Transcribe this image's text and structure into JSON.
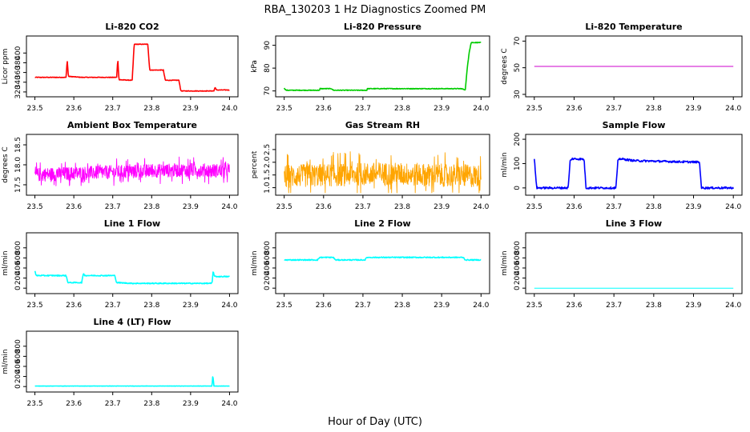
{
  "figure": {
    "title": "RBA_130203  1 Hz Diagnostics Zoomed PM",
    "xlabel": "Hour of Day (UTC)"
  },
  "chart_data": [
    {
      "id": "co2",
      "type": "line",
      "title": "Li-820 CO2",
      "ylabel": "Licor ppm",
      "color": "#ff0000",
      "xlim": [
        23.5,
        24.0
      ],
      "ylim": [
        315,
        430
      ],
      "xticks": [
        "23.5",
        "23.6",
        "23.7",
        "23.8",
        "23.9",
        "24.0"
      ],
      "yticks": [
        "320",
        "340",
        "360",
        "380",
        "400"
      ],
      "noise": 0.6,
      "points": [
        [
          23.5,
          350
        ],
        [
          23.58,
          350
        ],
        [
          23.583,
          386
        ],
        [
          23.586,
          352
        ],
        [
          23.62,
          350
        ],
        [
          23.71,
          350
        ],
        [
          23.713,
          387
        ],
        [
          23.716,
          345
        ],
        [
          23.75,
          344
        ],
        [
          23.755,
          418
        ],
        [
          23.79,
          418
        ],
        [
          23.795,
          365
        ],
        [
          23.83,
          365
        ],
        [
          23.835,
          344
        ],
        [
          23.87,
          344
        ],
        [
          23.875,
          322
        ],
        [
          23.96,
          322
        ],
        [
          23.963,
          330
        ],
        [
          23.966,
          324
        ],
        [
          24.0,
          324
        ]
      ]
    },
    {
      "id": "pressure",
      "type": "line",
      "title": "Li-820 Pressure",
      "ylabel": "kPa",
      "color": "#00cc00",
      "xlim": [
        23.5,
        24.0
      ],
      "ylim": [
        68.5,
        93
      ],
      "xticks": [
        "23.5",
        "23.6",
        "23.7",
        "23.8",
        "23.9",
        "24.0"
      ],
      "yticks": [
        "70",
        "80",
        "90"
      ],
      "noise": 0.15,
      "points": [
        [
          23.5,
          71.2
        ],
        [
          23.505,
          70.3
        ],
        [
          23.59,
          70.3
        ],
        [
          23.59,
          71
        ],
        [
          23.62,
          71
        ],
        [
          23.625,
          70.3
        ],
        [
          23.71,
          70.3
        ],
        [
          23.71,
          71
        ],
        [
          23.95,
          71
        ],
        [
          23.96,
          70.5
        ],
        [
          23.965,
          80
        ],
        [
          23.97,
          87
        ],
        [
          23.975,
          91.2
        ],
        [
          24.0,
          91.2
        ]
      ]
    },
    {
      "id": "temp",
      "type": "line",
      "title": "Li-820 Temperature",
      "ylabel": "degrees C",
      "color": "#cc00cc",
      "xlim": [
        23.5,
        24.0
      ],
      "ylim": [
        30,
        72
      ],
      "xticks": [
        "23.5",
        "23.6",
        "23.7",
        "23.8",
        "23.9",
        "24.0"
      ],
      "yticks": [
        "30",
        "50",
        "70"
      ],
      "noise": 0,
      "points": [
        [
          23.5,
          51
        ],
        [
          24.0,
          51
        ]
      ]
    },
    {
      "id": "boxtemp",
      "type": "line",
      "title": "Ambient Box Temperature",
      "ylabel": "degrees C",
      "color": "#ff00ff",
      "xlim": [
        23.5,
        24.0
      ],
      "ylim": [
        17.3,
        18.7
      ],
      "xticks": [
        "23.5",
        "23.6",
        "23.7",
        "23.8",
        "23.9",
        "24.0"
      ],
      "yticks": [
        "17.5",
        "18.0",
        "18.5"
      ],
      "noise": 0.17,
      "dense": true,
      "points": [
        [
          23.5,
          17.75
        ],
        [
          23.65,
          17.8
        ],
        [
          23.8,
          17.85
        ],
        [
          23.9,
          17.87
        ],
        [
          24.0,
          17.85
        ]
      ]
    },
    {
      "id": "rh",
      "type": "line",
      "title": "Gas Stream RH",
      "ylabel": "percent",
      "color": "#ffa500",
      "xlim": [
        23.5,
        24.0
      ],
      "ylim": [
        0.8,
        3.0
      ],
      "xticks": [
        "23.5",
        "23.6",
        "23.7",
        "23.8",
        "23.9",
        "24.0"
      ],
      "yticks": [
        "1.0",
        "1.5",
        "2.0",
        "2.5"
      ],
      "noise": 0.45,
      "dense": true,
      "points": [
        [
          23.5,
          1.45
        ],
        [
          23.75,
          1.55
        ],
        [
          24.0,
          1.45
        ]
      ]
    },
    {
      "id": "sample",
      "type": "line",
      "title": "Sample Flow",
      "ylabel": "ml/min",
      "color": "#0000ff",
      "xlim": [
        23.5,
        24.0
      ],
      "ylim": [
        -20,
        210
      ],
      "xticks": [
        "23.5",
        "23.6",
        "23.7",
        "23.8",
        "23.9",
        "24.0"
      ],
      "yticks": [
        "0",
        "100",
        "200"
      ],
      "noise": 4,
      "points": [
        [
          23.5,
          120
        ],
        [
          23.503,
          60
        ],
        [
          23.506,
          0
        ],
        [
          23.585,
          0
        ],
        [
          23.59,
          110
        ],
        [
          23.595,
          120
        ],
        [
          23.625,
          118
        ],
        [
          23.63,
          0
        ],
        [
          23.705,
          0
        ],
        [
          23.71,
          110
        ],
        [
          23.715,
          120
        ],
        [
          23.75,
          112
        ],
        [
          23.85,
          108
        ],
        [
          23.915,
          106
        ],
        [
          23.92,
          0
        ],
        [
          24.0,
          0
        ]
      ]
    },
    {
      "id": "line1",
      "type": "line",
      "title": "Line 1 Flow",
      "ylabel": "ml/min",
      "color": "#00ffff",
      "xlim": [
        23.5,
        24.0
      ],
      "ylim": [
        -60,
        1050
      ],
      "xticks": [
        "23.5",
        "23.6",
        "23.7",
        "23.8",
        "23.9",
        "24.0"
      ],
      "yticks": [
        "0",
        "200",
        "400",
        "600",
        "800"
      ],
      "noise": 10,
      "points": [
        [
          23.5,
          340
        ],
        [
          23.503,
          250
        ],
        [
          23.58,
          250
        ],
        [
          23.585,
          110
        ],
        [
          23.62,
          110
        ],
        [
          23.625,
          300
        ],
        [
          23.628,
          250
        ],
        [
          23.705,
          250
        ],
        [
          23.71,
          110
        ],
        [
          23.75,
          95
        ],
        [
          23.955,
          95
        ],
        [
          23.958,
          330
        ],
        [
          23.962,
          230
        ],
        [
          24.0,
          230
        ]
      ]
    },
    {
      "id": "line2",
      "type": "line",
      "title": "Line 2 Flow",
      "ylabel": "ml/min",
      "color": "#00ffff",
      "xlim": [
        23.5,
        24.0
      ],
      "ylim": [
        -60,
        1050
      ],
      "xticks": [
        "23.5",
        "23.6",
        "23.7",
        "23.8",
        "23.9",
        "24.0"
      ],
      "yticks": [
        "0",
        "200",
        "400",
        "600",
        "800"
      ],
      "noise": 10,
      "points": [
        [
          23.5,
          560
        ],
        [
          23.585,
          560
        ],
        [
          23.59,
          610
        ],
        [
          23.625,
          610
        ],
        [
          23.63,
          560
        ],
        [
          23.705,
          560
        ],
        [
          23.71,
          610
        ],
        [
          23.955,
          610
        ],
        [
          23.96,
          560
        ],
        [
          24.0,
          560
        ]
      ]
    },
    {
      "id": "line3",
      "type": "line",
      "title": "Line 3 Flow",
      "ylabel": "ml/min",
      "color": "#00ffff",
      "xlim": [
        23.5,
        24.0
      ],
      "ylim": [
        -60,
        1050
      ],
      "xticks": [
        "23.5",
        "23.6",
        "23.7",
        "23.8",
        "23.9",
        "24.0"
      ],
      "yticks": [
        "0",
        "200",
        "400",
        "600",
        "800"
      ],
      "noise": 0,
      "points": [
        [
          23.5,
          0
        ],
        [
          24.0,
          0
        ]
      ]
    },
    {
      "id": "line4",
      "type": "line",
      "title": "Line 4 (LT) Flow",
      "ylabel": "ml/min",
      "color": "#00ffff",
      "xlim": [
        23.5,
        24.0
      ],
      "ylim": [
        -60,
        1050
      ],
      "xticks": [
        "23.5",
        "23.6",
        "23.7",
        "23.8",
        "23.9",
        "24.0"
      ],
      "yticks": [
        "0",
        "200",
        "400",
        "600",
        "800"
      ],
      "noise": 2,
      "points": [
        [
          23.5,
          10
        ],
        [
          23.955,
          10
        ],
        [
          23.957,
          230
        ],
        [
          23.96,
          10
        ],
        [
          24.0,
          10
        ]
      ]
    }
  ]
}
